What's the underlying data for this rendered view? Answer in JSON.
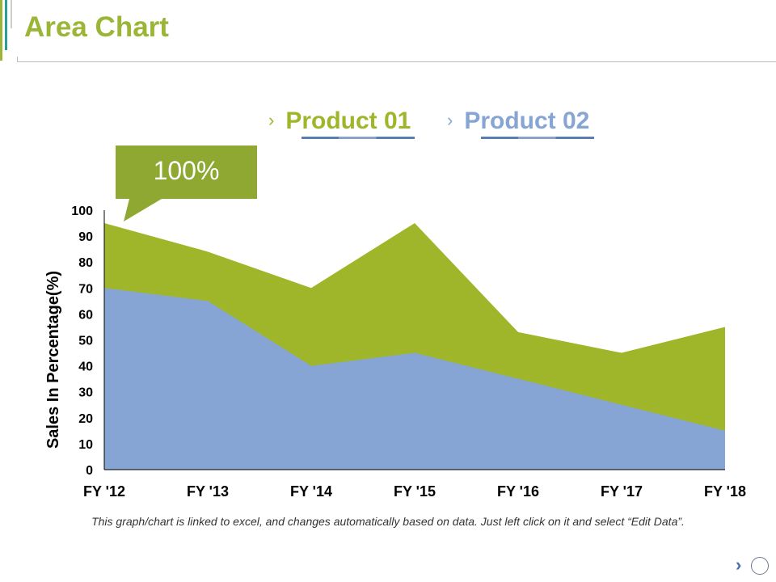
{
  "title": "Area Chart",
  "callout": "100%",
  "note": "This graph/chart is linked to excel, and changes automatically based on data. Just left click on it and select “Edit Data”.",
  "colors": {
    "product01": "#9fb62b",
    "product02": "#86a5d4",
    "title": "#9bb636"
  },
  "nav": {
    "icon": "chevron-right-icon",
    "circle": "circle-icon"
  },
  "chart_data": {
    "type": "area",
    "categories": [
      "FY '12",
      "FY '13",
      "FY '14",
      "FY '15",
      "FY '16",
      "FY '17",
      "FY '18"
    ],
    "series": [
      {
        "name": "Product 01",
        "values": [
          95,
          84,
          70,
          95,
          53,
          45,
          55
        ]
      },
      {
        "name": "Product 02",
        "values": [
          70,
          65,
          40,
          45,
          35,
          25,
          15
        ]
      }
    ],
    "ylabel": "Sales In Percentage(%)",
    "ylim": [
      0,
      100
    ],
    "yticks": [
      "0",
      "10",
      "20",
      "30",
      "40",
      "50",
      "60",
      "70",
      "80",
      "90",
      "100"
    ],
    "grid": false,
    "legend": "top"
  }
}
